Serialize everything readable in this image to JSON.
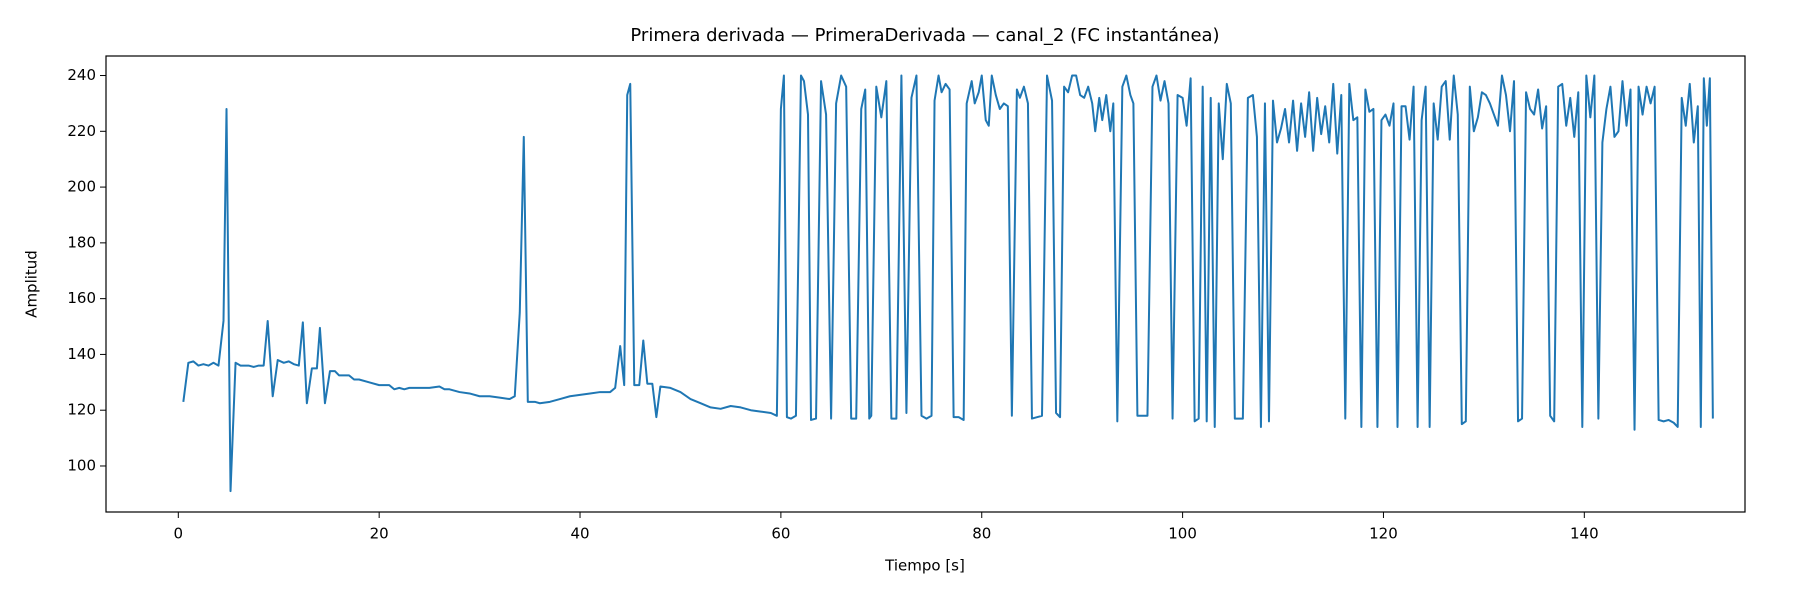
{
  "chart_data": {
    "type": "line",
    "title": "Primera derivada — PrimeraDerivada — canal_2 (FC instantánea)",
    "x_label": "Tiempo [s]",
    "y_label": "Amplitud",
    "color": "#1f77b4",
    "grid": false,
    "xlim": [
      -7.2,
      156
    ],
    "ylim": [
      83.5,
      247
    ],
    "xticks": [
      0,
      20,
      40,
      60,
      80,
      100,
      120,
      140
    ],
    "yticks": [
      100,
      120,
      140,
      160,
      180,
      200,
      220,
      240
    ],
    "x": [
      0.5,
      1,
      1.5,
      2,
      2.5,
      3,
      3.5,
      4,
      4.5,
      4.8,
      5.2,
      5.7,
      6.2,
      7,
      7.5,
      8,
      8.5,
      8.9,
      9.4,
      9.9,
      10.5,
      11,
      11.5,
      12,
      12.4,
      12.8,
      13.3,
      13.8,
      14.1,
      14.6,
      15.1,
      15.6,
      16,
      17,
      17.5,
      18,
      19,
      20,
      21,
      21.5,
      22,
      22.5,
      23,
      24,
      25,
      26,
      26.5,
      27,
      28,
      29,
      30,
      31,
      32,
      33,
      33.5,
      34,
      34.4,
      34.8,
      35.5,
      36,
      37,
      38,
      39,
      40,
      41,
      42,
      43,
      43.5,
      44,
      44.4,
      44.7,
      45,
      45.4,
      45.9,
      46.3,
      46.7,
      47.2,
      47.6,
      48,
      49,
      50,
      51,
      52,
      53,
      54,
      55,
      56,
      57,
      58,
      59,
      59.6,
      60,
      60.3,
      60.6,
      61,
      61.5,
      62,
      62.3,
      62.7,
      63,
      63.5,
      64,
      64.5,
      65,
      65.5,
      66,
      66.5,
      67,
      67.5,
      68,
      68.4,
      68.8,
      69,
      69.5,
      70,
      70.5,
      71,
      71.5,
      72,
      72.5,
      73,
      73.5,
      74,
      74.5,
      75,
      75.3,
      75.7,
      76,
      76.4,
      76.8,
      77.2,
      77.7,
      78.2,
      78.5,
      79,
      79.3,
      79.7,
      80,
      80.4,
      80.7,
      81,
      81.4,
      81.8,
      82.2,
      82.6,
      83,
      83.5,
      83.8,
      84.2,
      84.6,
      85,
      85.5,
      86,
      86.5,
      87,
      87.4,
      87.8,
      88.2,
      88.6,
      89,
      89.4,
      89.8,
      90.2,
      90.6,
      91,
      91.3,
      91.7,
      92,
      92.4,
      92.8,
      93.1,
      93.5,
      94,
      94.4,
      94.8,
      95.1,
      95.5,
      96,
      96.5,
      97,
      97.4,
      97.8,
      98.2,
      98.6,
      99,
      99.5,
      100,
      100.4,
      100.8,
      101.2,
      101.6,
      102,
      102.4,
      102.8,
      103.2,
      103.6,
      104,
      104.4,
      104.8,
      105.2,
      105.6,
      106,
      106.5,
      107,
      107.4,
      107.8,
      108.2,
      108.6,
      109,
      109.4,
      109.8,
      110.2,
      110.6,
      111,
      111.4,
      111.8,
      112.2,
      112.6,
      113,
      113.4,
      113.8,
      114.2,
      114.6,
      115,
      115.4,
      115.8,
      116.2,
      116.6,
      117,
      117.4,
      117.8,
      118.2,
      118.6,
      119,
      119.4,
      119.8,
      120.2,
      120.6,
      121,
      121.4,
      121.8,
      122.2,
      122.6,
      123,
      123.4,
      123.8,
      124.2,
      124.6,
      125,
      125.4,
      125.8,
      126.2,
      126.6,
      127,
      127.4,
      127.8,
      128.2,
      128.6,
      129,
      129.4,
      129.8,
      130.2,
      130.6,
      131,
      131.4,
      131.8,
      132.2,
      132.6,
      133,
      133.4,
      133.8,
      134.2,
      134.6,
      135,
      135.4,
      135.8,
      136.2,
      136.6,
      137,
      137.4,
      137.8,
      138.2,
      138.6,
      139,
      139.4,
      139.8,
      140.2,
      140.6,
      141,
      141.4,
      141.8,
      142.2,
      142.6,
      143,
      143.4,
      143.8,
      144.2,
      144.6,
      145,
      145.4,
      145.8,
      146.2,
      146.6,
      147,
      147.4,
      147.9,
      148.4,
      148.9,
      149.3,
      149.7,
      150.1,
      150.5,
      150.9,
      151.3,
      151.6,
      151.9,
      152.2,
      152.5,
      152.8
    ],
    "values": [
      123,
      137,
      137.5,
      136,
      136.5,
      136,
      137,
      136,
      152,
      228,
      91,
      137,
      136,
      136,
      135.5,
      136,
      136,
      152,
      125,
      138,
      137,
      137.5,
      136.5,
      136,
      151.5,
      122.5,
      135,
      135,
      149.5,
      122.5,
      134,
      134,
      132.5,
      132.5,
      131,
      131,
      130,
      129,
      129,
      127.5,
      128,
      127.5,
      128,
      128,
      128,
      128.5,
      127.5,
      127.5,
      126.5,
      126,
      125,
      125,
      124.5,
      124,
      125,
      155,
      218,
      123,
      123,
      122.5,
      123,
      124,
      125,
      125.5,
      126,
      126.5,
      126.5,
      128,
      143,
      129,
      233,
      237,
      129,
      129,
      145,
      129.5,
      129.5,
      117.5,
      128.5,
      128,
      126.5,
      124,
      122.5,
      121,
      120.5,
      121.5,
      121,
      120,
      119.5,
      119,
      118,
      228,
      240,
      117.5,
      117,
      118,
      240,
      238,
      226,
      116.5,
      117,
      238,
      226,
      117,
      230,
      240,
      236,
      117,
      117,
      228,
      235,
      117,
      118,
      236,
      225,
      238,
      117,
      117,
      240,
      119,
      232,
      240,
      118,
      117,
      118,
      231,
      240,
      234,
      237,
      235,
      117.5,
      117.5,
      116.5,
      230,
      238,
      230,
      234,
      240,
      224,
      222,
      240,
      233,
      228,
      230,
      229,
      118,
      235,
      232,
      236,
      230,
      117,
      117.5,
      118,
      240,
      231,
      119,
      117.5,
      236,
      234,
      240,
      240,
      233,
      232,
      236,
      230,
      220,
      232,
      224,
      233,
      220,
      230,
      116,
      236,
      240,
      233,
      230,
      118,
      118,
      118,
      236,
      240,
      231,
      238,
      230,
      117,
      233,
      232,
      222,
      239,
      116,
      117,
      236,
      116,
      232,
      114,
      230,
      210,
      237,
      230,
      117,
      117,
      117,
      232,
      233,
      218,
      114,
      230,
      116,
      231,
      216,
      221,
      228,
      216,
      231,
      213,
      230,
      218,
      234,
      213,
      232,
      219,
      229,
      216,
      237,
      212,
      233,
      117,
      237,
      224,
      225,
      114,
      235,
      227,
      228,
      114,
      224,
      226,
      222,
      230,
      114,
      229,
      229,
      217,
      236,
      114,
      224,
      236,
      114,
      230,
      217,
      236,
      238,
      217,
      240,
      226,
      115,
      116,
      236,
      220,
      225,
      234,
      233,
      230,
      226,
      222,
      240,
      233,
      220,
      238,
      116,
      117,
      234,
      228,
      226,
      235,
      221,
      229,
      118,
      116,
      236,
      237,
      222,
      232,
      218,
      234,
      114,
      240,
      225,
      240,
      117,
      216,
      228,
      236,
      218,
      220,
      238,
      222,
      235,
      113,
      236,
      226,
      236,
      230,
      236,
      116.5,
      116,
      116.5,
      115.5,
      114,
      232,
      222,
      237,
      216,
      229,
      114,
      239,
      222,
      239,
      117
    ]
  }
}
